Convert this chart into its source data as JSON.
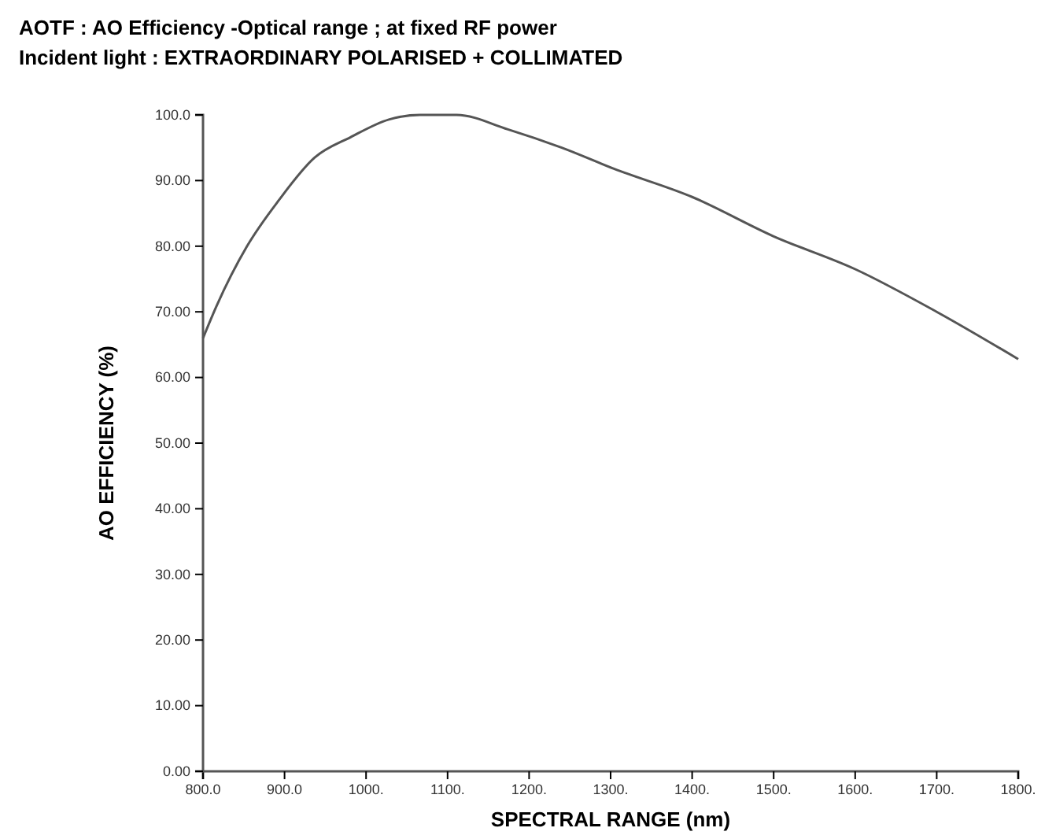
{
  "chart_data": {
    "type": "line",
    "title": "AOTF : AO Efficiency -Optical range ; at fixed RF power",
    "subtitle": "Incident light : EXTRAORDINARY POLARISED + COLLIMATED",
    "xlabel": "SPECTRAL RANGE (nm)",
    "ylabel": "AO EFFICIENCY (%)",
    "x": [
      800,
      817,
      854,
      893,
      937,
      981,
      1028,
      1066,
      1090,
      1111,
      1174,
      1240,
      1304,
      1400,
      1500,
      1600,
      1700,
      1800
    ],
    "series": [
      {
        "color": "#555555",
        "values": [
          66,
          71,
          80,
          87,
          93.5,
          96.6,
          99.3,
          100,
          100,
          100,
          97.8,
          95,
          91.8,
          87.5,
          81.5,
          76.5,
          70,
          62.8
        ]
      }
    ],
    "xlim": [
      800,
      1800
    ],
    "ylim": [
      0,
      100
    ],
    "xticks": [
      {
        "value": 800,
        "label": "800.0"
      },
      {
        "value": 900,
        "label": "900.0"
      },
      {
        "value": 1000,
        "label": "1000."
      },
      {
        "value": 1100,
        "label": "1100."
      },
      {
        "value": 1200,
        "label": "1200."
      },
      {
        "value": 1300,
        "label": "1300."
      },
      {
        "value": 1400,
        "label": "1400."
      },
      {
        "value": 1500,
        "label": "1500."
      },
      {
        "value": 1600,
        "label": "1600."
      },
      {
        "value": 1700,
        "label": "1700."
      },
      {
        "value": 1800,
        "label": "1800."
      }
    ],
    "yticks": [
      {
        "value": 0,
        "label": "0.00"
      },
      {
        "value": 10,
        "label": "10.00"
      },
      {
        "value": 20,
        "label": "20.00"
      },
      {
        "value": 30,
        "label": "30.00"
      },
      {
        "value": 40,
        "label": "40.00"
      },
      {
        "value": 50,
        "label": "50.00"
      },
      {
        "value": 60,
        "label": "60.00"
      },
      {
        "value": 70,
        "label": "70.00"
      },
      {
        "value": 80,
        "label": "80.00"
      },
      {
        "value": 90,
        "label": "90.00"
      },
      {
        "value": 100,
        "label": "100.0"
      }
    ],
    "grid": false,
    "marker": "none",
    "line_style": "solid"
  }
}
